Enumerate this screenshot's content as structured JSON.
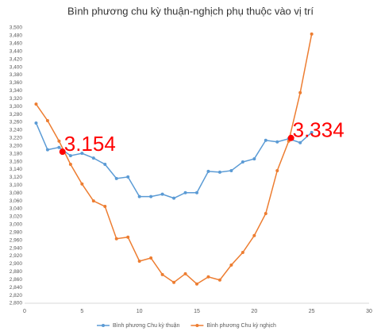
{
  "chart_data": {
    "type": "line",
    "title": "Bình phương chu kỳ thuận-nghịch phụ thuộc vào vị trí",
    "x": [
      1,
      2,
      3,
      4,
      5,
      6,
      7,
      8,
      9,
      10,
      11,
      12,
      13,
      14,
      15,
      16,
      17,
      18,
      19,
      20,
      21,
      22,
      23,
      24,
      25
    ],
    "series": [
      {
        "name": "Bình phương Chu kỳ thuận",
        "color": "#5b9bd5",
        "values": [
          3258,
          3190,
          3196,
          3175,
          3181,
          3169,
          3153,
          3117,
          3121,
          3071,
          3071,
          3077,
          3067,
          3081,
          3081,
          3135,
          3133,
          3137,
          3159,
          3167,
          3214,
          3210,
          3218,
          3208,
          3234
        ]
      },
      {
        "name": "Bình phương Chu kỳ nghịch",
        "color": "#ed7d31",
        "values": [
          3306,
          3264,
          3212,
          3153,
          3103,
          3060,
          3046,
          2964,
          2968,
          2907,
          2915,
          2873,
          2853,
          2875,
          2849,
          2867,
          2859,
          2897,
          2929,
          2972,
          3028,
          3137,
          3212,
          3335,
          3484
        ]
      }
    ],
    "xlim": [
      0,
      30
    ],
    "xticks": [
      0,
      5,
      10,
      15,
      20,
      25,
      30
    ],
    "ylim": [
      2800,
      3500
    ],
    "yticks": [
      {
        "value": 2800,
        "label": "2,800"
      },
      {
        "value": 2820,
        "label": "2,820"
      },
      {
        "value": 2840,
        "label": "2,840"
      },
      {
        "value": 2860,
        "label": "2,860"
      },
      {
        "value": 2880,
        "label": "2,880"
      },
      {
        "value": 2900,
        "label": "2,900"
      },
      {
        "value": 2920,
        "label": "2,920"
      },
      {
        "value": 2940,
        "label": "2,940"
      },
      {
        "value": 2960,
        "label": "2,960"
      },
      {
        "value": 2980,
        "label": "2,980"
      },
      {
        "value": 3000,
        "label": "3,000"
      },
      {
        "value": 3020,
        "label": "3,020"
      },
      {
        "value": 3040,
        "label": "3,040"
      },
      {
        "value": 3060,
        "label": "3,060"
      },
      {
        "value": 3080,
        "label": "3,080"
      },
      {
        "value": 3100,
        "label": "3,100"
      },
      {
        "value": 3120,
        "label": "3,120"
      },
      {
        "value": 3140,
        "label": "3,140"
      },
      {
        "value": 3160,
        "label": "3,160"
      },
      {
        "value": 3180,
        "label": "3,180"
      },
      {
        "value": 3200,
        "label": "3,200"
      },
      {
        "value": 3220,
        "label": "3,220"
      },
      {
        "value": 3240,
        "label": "3,240"
      },
      {
        "value": 3260,
        "label": "3,260"
      },
      {
        "value": 3280,
        "label": "3,280"
      },
      {
        "value": 3300,
        "label": "3,300"
      },
      {
        "value": 3320,
        "label": "3,320"
      },
      {
        "value": 3340,
        "label": "3,340"
      },
      {
        "value": 3360,
        "label": "3,360"
      },
      {
        "value": 3380,
        "label": "3,380"
      },
      {
        "value": 3400,
        "label": "3,400"
      },
      {
        "value": 3420,
        "label": "3,420"
      },
      {
        "value": 3440,
        "label": "3,440"
      },
      {
        "value": 3460,
        "label": "3,460"
      },
      {
        "value": 3480,
        "label": "3,480"
      },
      {
        "value": 3500,
        "label": "3,500"
      }
    ],
    "grid": false,
    "legend": "bottom",
    "annotations": [
      {
        "text": "3.154",
        "x": 3.3,
        "y": 3185,
        "color": "#ff0000"
      },
      {
        "text": "3.334",
        "x": 23.2,
        "y": 3220,
        "color": "#ff0000"
      }
    ]
  }
}
